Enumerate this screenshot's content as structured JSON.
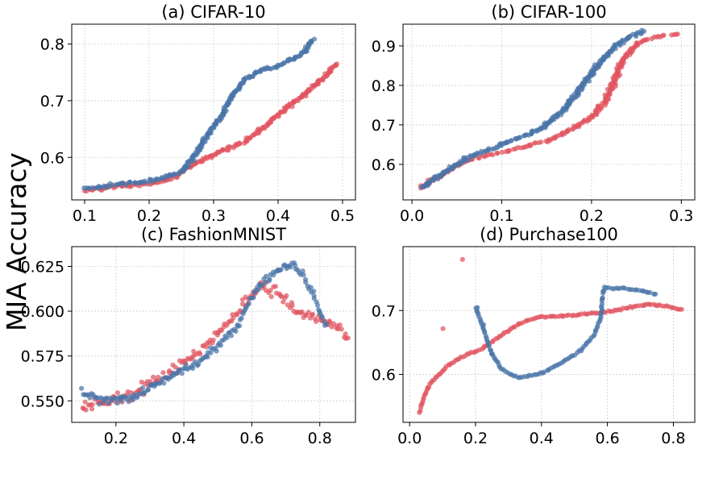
{
  "figure": {
    "ylabel": "MIA Accuracy",
    "series_colors": {
      "blue": "#4a74a8",
      "red": "#e05560"
    }
  },
  "chart_data": [
    {
      "type": "scatter",
      "title": "(a) CIFAR-10",
      "xlim": [
        0.08,
        0.52
      ],
      "ylim": [
        0.525,
        0.835
      ],
      "xticks": [
        0.1,
        0.2,
        0.3,
        0.4,
        0.5
      ],
      "xtick_labels": [
        "0.1",
        "0.2",
        "0.3",
        "0.4",
        "0.5"
      ],
      "yticks": [
        0.6,
        0.7,
        0.8
      ],
      "ytick_labels": [
        "0.6",
        "0.7",
        "0.8"
      ],
      "grid": true,
      "series": [
        {
          "name": "blue",
          "color": "#4a74a8",
          "curve": [
            [
              0.1,
              0.545
            ],
            [
              0.15,
              0.552
            ],
            [
              0.2,
              0.558
            ],
            [
              0.22,
              0.563
            ],
            [
              0.25,
              0.575
            ],
            [
              0.27,
              0.6
            ],
            [
              0.29,
              0.64
            ],
            [
              0.31,
              0.67
            ],
            [
              0.33,
              0.71
            ],
            [
              0.35,
              0.738
            ],
            [
              0.37,
              0.752
            ],
            [
              0.4,
              0.762
            ],
            [
              0.42,
              0.772
            ],
            [
              0.44,
              0.785
            ],
            [
              0.455,
              0.81
            ]
          ],
          "n": 230,
          "jitter": 0.004
        },
        {
          "name": "red",
          "color": "#e05560",
          "curve": [
            [
              0.1,
              0.54
            ],
            [
              0.15,
              0.55
            ],
            [
              0.2,
              0.553
            ],
            [
              0.24,
              0.565
            ],
            [
              0.26,
              0.58
            ],
            [
              0.28,
              0.595
            ],
            [
              0.31,
              0.61
            ],
            [
              0.35,
              0.63
            ],
            [
              0.38,
              0.655
            ],
            [
              0.41,
              0.685
            ],
            [
              0.44,
              0.71
            ],
            [
              0.47,
              0.74
            ],
            [
              0.49,
              0.765
            ]
          ],
          "n": 210,
          "jitter": 0.004
        }
      ]
    },
    {
      "type": "scatter",
      "title": "(b) CIFAR-100",
      "xlim": [
        -0.01,
        0.315
      ],
      "ylim": [
        0.51,
        0.955
      ],
      "xticks": [
        0.0,
        0.1,
        0.2,
        0.3
      ],
      "xtick_labels": [
        "0.0",
        "0.1",
        "0.2",
        "0.3"
      ],
      "yticks": [
        0.6,
        0.7,
        0.8,
        0.9
      ],
      "ytick_labels": [
        "0.6",
        "0.7",
        "0.8",
        "0.9"
      ],
      "grid": true,
      "series": [
        {
          "name": "blue",
          "color": "#4a74a8",
          "curve": [
            [
              0.01,
              0.54
            ],
            [
              0.03,
              0.57
            ],
            [
              0.05,
              0.6
            ],
            [
              0.07,
              0.625
            ],
            [
              0.09,
              0.64
            ],
            [
              0.11,
              0.66
            ],
            [
              0.13,
              0.675
            ],
            [
              0.15,
              0.7
            ],
            [
              0.17,
              0.74
            ],
            [
              0.19,
              0.8
            ],
            [
              0.21,
              0.86
            ],
            [
              0.23,
              0.905
            ],
            [
              0.245,
              0.925
            ],
            [
              0.26,
              0.94
            ]
          ],
          "n": 240,
          "jitter": 0.004
        },
        {
          "name": "red",
          "color": "#e05560",
          "curve": [
            [
              0.01,
              0.54
            ],
            [
              0.03,
              0.57
            ],
            [
              0.06,
              0.61
            ],
            [
              0.09,
              0.625
            ],
            [
              0.12,
              0.64
            ],
            [
              0.15,
              0.66
            ],
            [
              0.18,
              0.69
            ],
            [
              0.2,
              0.72
            ],
            [
              0.215,
              0.76
            ],
            [
              0.225,
              0.81
            ],
            [
              0.235,
              0.865
            ],
            [
              0.25,
              0.905
            ],
            [
              0.27,
              0.922
            ],
            [
              0.3,
              0.93
            ]
          ],
          "n": 220,
          "jitter": 0.004
        }
      ]
    },
    {
      "type": "scatter",
      "title": "(c) FashionMNIST",
      "xlim": [
        0.07,
        0.905
      ],
      "ylim": [
        0.538,
        0.636
      ],
      "xticks": [
        0.2,
        0.4,
        0.6,
        0.8
      ],
      "xtick_labels": [
        "0.2",
        "0.4",
        "0.6",
        "0.8"
      ],
      "yticks": [
        0.55,
        0.575,
        0.6,
        0.625
      ],
      "ytick_labels": [
        "0.550",
        "0.575",
        "0.600",
        "0.625"
      ],
      "grid": true,
      "series": [
        {
          "name": "blue",
          "color": "#4a74a8",
          "curve": [
            [
              0.1,
              0.555
            ],
            [
              0.15,
              0.55
            ],
            [
              0.25,
              0.552
            ],
            [
              0.35,
              0.562
            ],
            [
              0.45,
              0.572
            ],
            [
              0.55,
              0.59
            ],
            [
              0.62,
              0.615
            ],
            [
              0.68,
              0.623
            ],
            [
              0.72,
              0.627
            ],
            [
              0.75,
              0.62
            ],
            [
              0.78,
              0.61
            ],
            [
              0.8,
              0.6
            ],
            [
              0.82,
              0.59
            ]
          ],
          "n": 170,
          "jitter": 0.003
        },
        {
          "name": "red",
          "color": "#e05560",
          "curve": [
            [
              0.1,
              0.545
            ],
            [
              0.15,
              0.55
            ],
            [
              0.25,
              0.553
            ],
            [
              0.35,
              0.565
            ],
            [
              0.45,
              0.578
            ],
            [
              0.55,
              0.598
            ],
            [
              0.62,
              0.615
            ],
            [
              0.68,
              0.61
            ],
            [
              0.73,
              0.6
            ],
            [
              0.78,
              0.597
            ],
            [
              0.82,
              0.594
            ],
            [
              0.86,
              0.589
            ],
            [
              0.885,
              0.583
            ]
          ],
          "n": 170,
          "jitter": 0.0045
        }
      ]
    },
    {
      "type": "scatter",
      "title": "(d) Purchase100",
      "xlim": [
        -0.02,
        0.865
      ],
      "ylim": [
        0.525,
        0.8
      ],
      "xticks": [
        0.0,
        0.2,
        0.4,
        0.6,
        0.8
      ],
      "xtick_labels": [
        "0.0",
        "0.2",
        "0.4",
        "0.6",
        "0.8"
      ],
      "yticks": [
        0.6,
        0.7
      ],
      "ytick_labels": [
        "0.6",
        "0.7"
      ],
      "grid": true,
      "series": [
        {
          "name": "blue",
          "color": "#4a74a8",
          "curve": [
            [
              0.2,
              0.705
            ],
            [
              0.22,
              0.677
            ],
            [
              0.25,
              0.632
            ],
            [
              0.28,
              0.608
            ],
            [
              0.33,
              0.595
            ],
            [
              0.4,
              0.602
            ],
            [
              0.46,
              0.618
            ],
            [
              0.52,
              0.638
            ],
            [
              0.56,
              0.662
            ],
            [
              0.58,
              0.69
            ],
            [
              0.585,
              0.72
            ],
            [
              0.59,
              0.735
            ],
            [
              0.65,
              0.735
            ],
            [
              0.7,
              0.731
            ],
            [
              0.75,
              0.725
            ]
          ],
          "n": 120,
          "jitter": 0.002,
          "extra": [
            [
              0.205,
              0.705
            ],
            [
              0.225,
              0.677
            ],
            [
              0.25,
              0.632
            ]
          ]
        },
        {
          "name": "red",
          "color": "#e05560",
          "curve": [
            [
              0.03,
              0.54
            ],
            [
              0.04,
              0.558
            ],
            [
              0.06,
              0.585
            ],
            [
              0.09,
              0.6
            ],
            [
              0.12,
              0.615
            ],
            [
              0.16,
              0.628
            ],
            [
              0.22,
              0.64
            ],
            [
              0.28,
              0.662
            ],
            [
              0.34,
              0.682
            ],
            [
              0.4,
              0.69
            ],
            [
              0.48,
              0.692
            ],
            [
              0.55,
              0.695
            ],
            [
              0.62,
              0.7
            ],
            [
              0.67,
              0.705
            ],
            [
              0.72,
              0.71
            ],
            [
              0.78,
              0.707
            ],
            [
              0.83,
              0.7
            ]
          ],
          "n": 140,
          "jitter": 0.002,
          "extra": [
            [
              0.16,
              0.78
            ],
            [
              0.1,
              0.672
            ]
          ]
        }
      ]
    }
  ]
}
